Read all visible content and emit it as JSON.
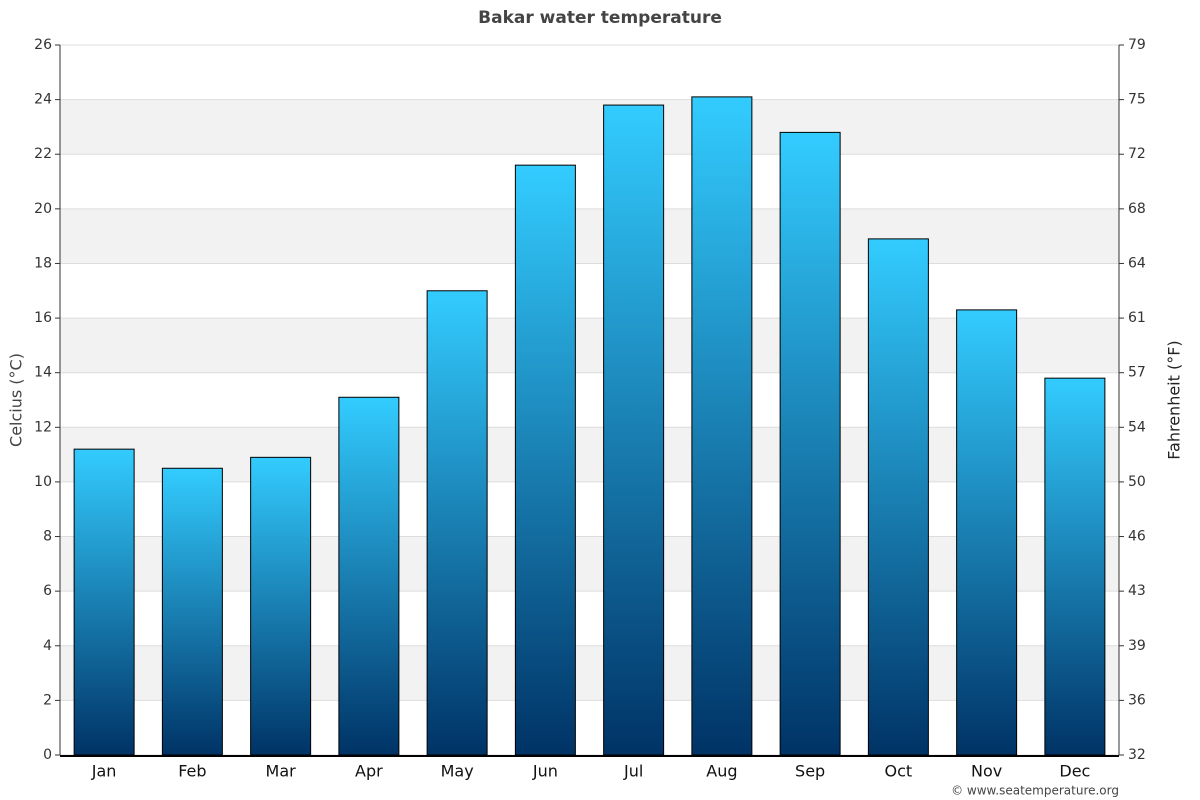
{
  "chart_data": {
    "type": "bar",
    "title": "Bakar water temperature",
    "y_label": "Celcius (°C)",
    "y2_label": "Fahrenheit (°F)",
    "source": "© www.seatemperature.org",
    "categories": [
      "Jan",
      "Feb",
      "Mar",
      "Apr",
      "May",
      "Jun",
      "Jul",
      "Aug",
      "Sep",
      "Oct",
      "Nov",
      "Dec"
    ],
    "values": [
      11.2,
      10.5,
      10.9,
      13.1,
      17.0,
      21.6,
      23.8,
      24.1,
      22.8,
      18.9,
      16.3,
      13.8
    ],
    "color": "#33ccff",
    "color_bottom": "#003366",
    "ylim": [
      0,
      26
    ],
    "yticks": [
      0,
      2,
      4,
      6,
      8,
      10,
      12,
      14,
      16,
      18,
      20,
      22,
      24,
      26
    ],
    "y2lim": [
      32,
      78.8
    ],
    "y2ticks": [
      32,
      {
        "value": 35.6,
        "label": "36"
      },
      {
        "value": 39.2,
        "label": "39"
      },
      {
        "value": 42.8,
        "label": "43"
      },
      {
        "value": 46.4,
        "label": "46"
      },
      50,
      {
        "value": 53.6,
        "label": "54"
      },
      {
        "value": 57.2,
        "label": "57"
      },
      {
        "value": 60.8,
        "label": "61"
      },
      {
        "value": 64.4,
        "label": "64"
      },
      68,
      {
        "value": 71.6,
        "label": "72"
      },
      {
        "value": 75.2,
        "label": "75"
      },
      {
        "value": 78.8,
        "label": "79"
      }
    ],
    "grid": true
  }
}
